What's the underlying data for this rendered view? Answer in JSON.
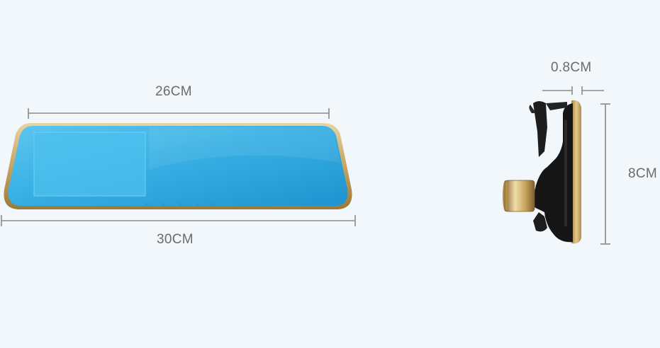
{
  "dimensions": {
    "screen_width": "26CM",
    "total_width": "30CM",
    "depth": "0.8CM",
    "height": "8CM"
  },
  "colors": {
    "background": "#f1f7fb",
    "mirror_blue": "#3fb4e6",
    "gold_frame": "#c9a96a",
    "dimension_line": "#8a8a8a",
    "label_text": "#6b6b6b"
  },
  "objects": {
    "front_view": "rearview-mirror-dashcam-front",
    "side_view": "rearview-mirror-dashcam-side"
  }
}
